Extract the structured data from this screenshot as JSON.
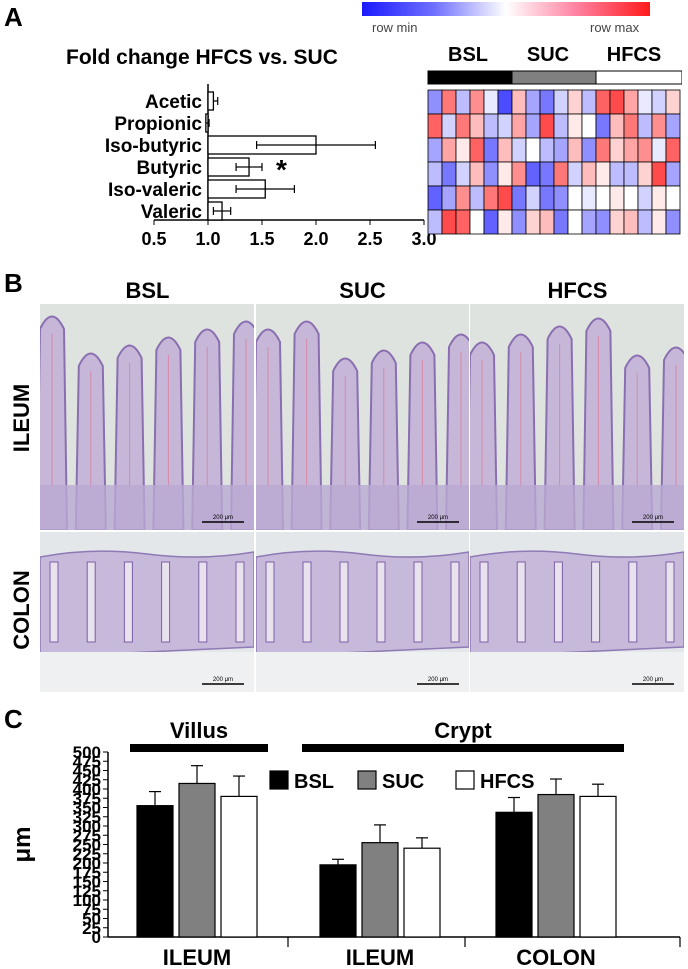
{
  "panelA": {
    "letter": "A",
    "title": "Fold change HFCS vs. SUC",
    "color_scale": {
      "min_label": "row min",
      "max_label": "row max"
    },
    "heatmap_groups": [
      "BSL",
      "SUC",
      "HFCS"
    ],
    "significance_marker": "*"
  },
  "panelB": {
    "letter": "B",
    "columns": [
      "BSL",
      "SUC",
      "HFCS"
    ],
    "rows": [
      "ILEUM",
      "COLON"
    ],
    "scale_bar": "200 μm"
  },
  "panelC": {
    "letter": "C",
    "group_headers": [
      "Villus",
      "Crypt"
    ]
  },
  "chart_data": [
    {
      "type": "bar",
      "orientation": "horizontal",
      "title": "Fold change HFCS vs. SUC",
      "categories": [
        "Acetic",
        "Propionic",
        "Iso-butyric",
        "Butyric",
        "Iso-valeric",
        "Valeric"
      ],
      "values": [
        1.05,
        0.98,
        2.0,
        1.38,
        1.53,
        1.13
      ],
      "errors": [
        0.04,
        0.03,
        0.55,
        0.12,
        0.27,
        0.08
      ],
      "xlim": [
        0.5,
        3.0
      ],
      "xticks": [
        "0.5",
        "1.0",
        "1.5",
        "2.0",
        "2.5",
        "3.0"
      ],
      "baseline": 1.0,
      "significant": [
        false,
        false,
        false,
        true,
        false,
        false
      ]
    },
    {
      "type": "heatmap",
      "groups": [
        "BSL",
        "SUC",
        "HFCS"
      ],
      "colors": [
        "#000000",
        "#808080",
        "#ffffff"
      ],
      "columns_per_group": 6,
      "rows": 6,
      "values": [
        [
          -0.5,
          0.6,
          -0.3,
          0.5,
          -0.1,
          -0.8,
          0.3,
          -0.4,
          -0.6,
          -0.2,
          0.2,
          -0.3,
          0.7,
          0.8,
          0.4,
          -0.1,
          -0.2,
          0.2
        ],
        [
          0.7,
          -0.2,
          0.6,
          0.3,
          -0.3,
          -0.2,
          0.4,
          -0.4,
          0.8,
          -0.3,
          0.1,
          0.0,
          -0.6,
          0.3,
          0.6,
          -0.3,
          0.5,
          -0.4
        ],
        [
          -0.4,
          0.4,
          0.1,
          0.7,
          -0.6,
          0.3,
          -0.2,
          0.0,
          -0.3,
          -0.4,
          0.3,
          -0.5,
          0.6,
          0.2,
          0.4,
          0.5,
          -0.1,
          0.7
        ],
        [
          -0.3,
          -0.6,
          -0.2,
          0.3,
          -0.5,
          0.1,
          0.5,
          -0.7,
          -0.6,
          0.6,
          -0.2,
          0.3,
          0.1,
          -0.3,
          -0.3,
          0.2,
          0.8,
          -0.4
        ],
        [
          -0.7,
          -0.4,
          0.5,
          -0.3,
          0.6,
          0.8,
          -0.6,
          -0.2,
          -0.6,
          -0.5,
          0.0,
          -0.1,
          0.0,
          0.1,
          0.0,
          -0.2,
          0.1,
          0.0
        ],
        [
          -0.3,
          0.8,
          0.7,
          0.0,
          -0.7,
          0.1,
          -0.5,
          0.2,
          0.3,
          -0.6,
          0.0,
          -0.4,
          -0.5,
          0.2,
          0.3,
          -0.3,
          0.1,
          -0.5
        ]
      ]
    },
    {
      "type": "bar",
      "ylabel": "μm",
      "ylim": [
        0,
        500
      ],
      "yticks": [
        0,
        25,
        50,
        75,
        100,
        125,
        150,
        175,
        200,
        225,
        250,
        275,
        300,
        325,
        350,
        375,
        400,
        425,
        450,
        475,
        500
      ],
      "legend_position": "top-right",
      "categories": [
        "ILEUM",
        "ILEUM",
        "COLON"
      ],
      "group_headers": [
        "Villus",
        "Crypt",
        "Crypt"
      ],
      "series": [
        {
          "name": "BSL",
          "color": "#000000",
          "values": [
            355,
            195,
            337
          ],
          "errors": [
            38,
            15,
            40
          ]
        },
        {
          "name": "SUC",
          "color": "#808080",
          "values": [
            415,
            255,
            385
          ],
          "errors": [
            48,
            48,
            42
          ]
        },
        {
          "name": "HFCS",
          "color": "#ffffff",
          "values": [
            380,
            240,
            380
          ],
          "errors": [
            55,
            28,
            33
          ]
        }
      ]
    }
  ]
}
